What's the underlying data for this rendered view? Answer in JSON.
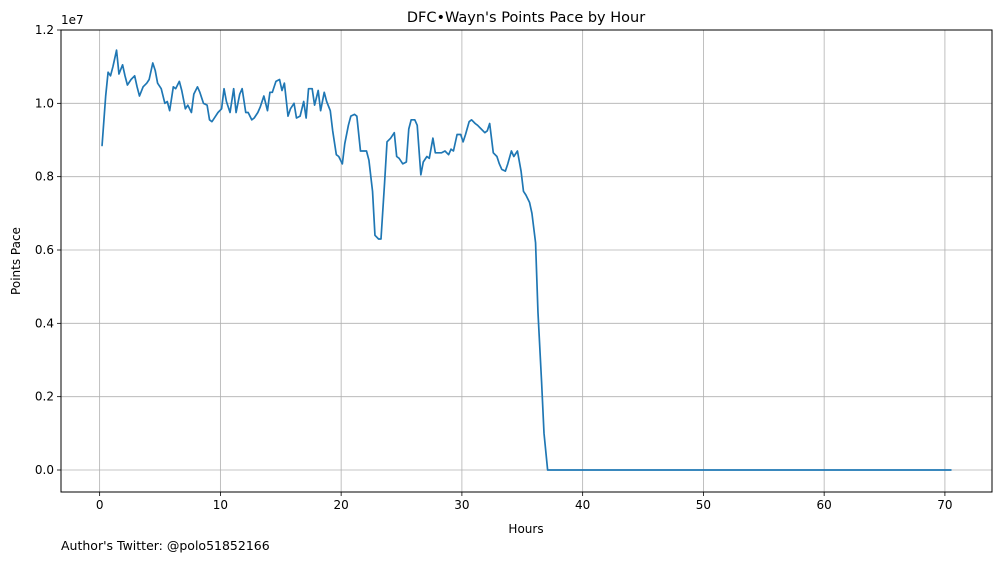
{
  "footnote": "Author's Twitter: @polo51852166",
  "chart_data": {
    "type": "line",
    "title": "DFC•Wayn's Points Pace by Hour",
    "xlabel": "Hours",
    "ylabel": "Points Pace",
    "y_offset_label": "1e7",
    "xlim": [
      -3.2,
      73.9
    ],
    "ylim": [
      -600000,
      12000000
    ],
    "xticks": [
      0,
      10,
      20,
      30,
      40,
      50,
      60,
      70
    ],
    "xtick_labels": [
      "0",
      "10",
      "20",
      "30",
      "40",
      "50",
      "60",
      "70"
    ],
    "yticks": [
      0,
      2000000,
      4000000,
      6000000,
      8000000,
      10000000,
      12000000
    ],
    "ytick_labels": [
      "0.0",
      "0.2",
      "0.4",
      "0.6",
      "0.8",
      "1.0",
      "1.2"
    ],
    "grid": true,
    "line_color": "#1f77b4",
    "series": [
      {
        "x": [
          0.2,
          0.5,
          0.7,
          0.9,
          1.1,
          1.4,
          1.6,
          1.9,
          2.1,
          2.3,
          2.6,
          2.9,
          3.1,
          3.3,
          3.6,
          3.9,
          4.1,
          4.4,
          4.6,
          4.8,
          5.1,
          5.4,
          5.6,
          5.8,
          6.1,
          6.3,
          6.6,
          6.8,
          7.1,
          7.3,
          7.6,
          7.8,
          8.1,
          8.3,
          8.6,
          8.9,
          9.1,
          9.3,
          9.6,
          9.8,
          10.1,
          10.3,
          10.5,
          10.8,
          11.1,
          11.3,
          11.6,
          11.8,
          12.1,
          12.3,
          12.6,
          12.8,
          13.1,
          13.3,
          13.6,
          13.9,
          14.1,
          14.3,
          14.6,
          14.9,
          15.1,
          15.3,
          15.6,
          15.8,
          16.1,
          16.3,
          16.6,
          16.9,
          17.1,
          17.3,
          17.6,
          17.8,
          18.1,
          18.3,
          18.6,
          18.8,
          19.1,
          19.3,
          19.6,
          19.8,
          20.1,
          20.3,
          20.6,
          20.8,
          21.1,
          21.3,
          21.6,
          21.8,
          22.1,
          22.3,
          22.6,
          22.8,
          23.1,
          23.3,
          23.6,
          23.8,
          24.1,
          24.4,
          24.6,
          24.8,
          25.1,
          25.4,
          25.6,
          25.8,
          26.1,
          26.3,
          26.6,
          26.8,
          27.1,
          27.3,
          27.6,
          27.8,
          28.1,
          28.3,
          28.6,
          28.9,
          29.1,
          29.3,
          29.6,
          29.9,
          30.1,
          30.3,
          30.6,
          30.8,
          31.1,
          31.3,
          31.6,
          31.9,
          32.1,
          32.3,
          32.6,
          32.9,
          33.1,
          33.3,
          33.6,
          33.8,
          34.1,
          34.3,
          34.6,
          34.9,
          35.1,
          35.3,
          35.6,
          35.8,
          36.1,
          36.3,
          36.6,
          36.8,
          37.1,
          37.4,
          40,
          50,
          60,
          70.5
        ],
        "y": [
          8850000,
          10200000,
          10850000,
          10750000,
          11000000,
          11450000,
          10800000,
          11050000,
          10750000,
          10500000,
          10650000,
          10750000,
          10450000,
          10200000,
          10450000,
          10550000,
          10650000,
          11100000,
          10900000,
          10550000,
          10400000,
          10000000,
          10050000,
          9800000,
          10450000,
          10400000,
          10600000,
          10350000,
          9850000,
          9950000,
          9750000,
          10250000,
          10450000,
          10300000,
          10000000,
          9950000,
          9550000,
          9500000,
          9650000,
          9750000,
          9850000,
          10400000,
          10050000,
          9750000,
          10400000,
          9750000,
          10250000,
          10400000,
          9750000,
          9750000,
          9550000,
          9600000,
          9750000,
          9900000,
          10200000,
          9800000,
          10300000,
          10300000,
          10600000,
          10650000,
          10350000,
          10550000,
          9650000,
          9850000,
          10000000,
          9600000,
          9650000,
          10050000,
          9600000,
          10400000,
          10400000,
          9950000,
          10350000,
          9800000,
          10300000,
          10050000,
          9800000,
          9250000,
          8600000,
          8550000,
          8350000,
          8900000,
          9400000,
          9650000,
          9700000,
          9650000,
          8700000,
          8700000,
          8700000,
          8450000,
          7600000,
          6400000,
          6300000,
          6300000,
          7850000,
          8950000,
          9050000,
          9200000,
          8550000,
          8500000,
          8350000,
          8400000,
          9300000,
          9550000,
          9550000,
          9400000,
          8050000,
          8400000,
          8550000,
          8500000,
          9050000,
          8650000,
          8650000,
          8650000,
          8700000,
          8600000,
          8750000,
          8700000,
          9150000,
          9150000,
          8950000,
          9150000,
          9500000,
          9550000,
          9450000,
          9400000,
          9300000,
          9200000,
          9250000,
          9450000,
          8650000,
          8550000,
          8350000,
          8200000,
          8150000,
          8350000,
          8700000,
          8550000,
          8700000,
          8150000,
          7600000,
          7500000,
          7300000,
          7000000,
          6200000,
          4300000,
          2400000,
          1000000,
          0,
          0,
          0,
          0,
          0,
          0
        ]
      }
    ]
  }
}
